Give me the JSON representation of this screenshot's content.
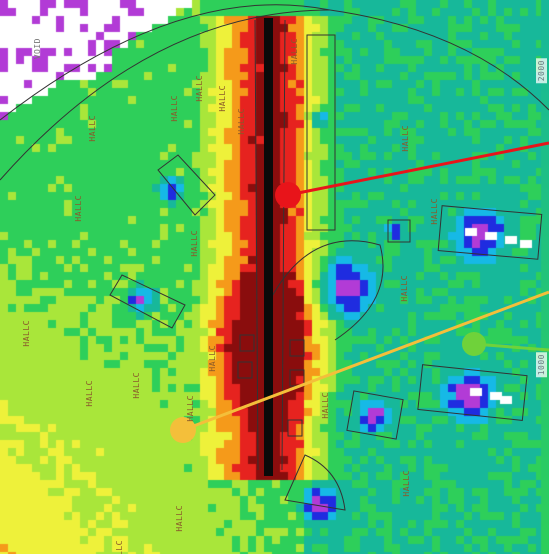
{
  "labels": {
    "room": "HALLC",
    "void": "VOID",
    "scale_top": "2000",
    "scale_mid": "1000"
  },
  "colors": {
    "white": "#ffffff",
    "magenta": "#b23bd6",
    "blue": "#1f2ce0",
    "cyan": "#16b9e6",
    "teal": "#17b89a",
    "green": "#2ecf5a",
    "yellowgreen": "#a9e63a",
    "yellow": "#eef13a",
    "orange": "#f59a1a",
    "red": "#e6231f",
    "darkred": "#8a0d0d",
    "marker_red": "#e8141a",
    "marker_yellow": "#f4bf3a",
    "marker_green": "#6fd23a"
  },
  "markers": [
    {
      "name": "red-marker",
      "color": "#e8141a"
    },
    {
      "name": "yellow-marker",
      "color": "#f4bf3a"
    },
    {
      "name": "green-marker",
      "color": "#6fd23a"
    }
  ]
}
